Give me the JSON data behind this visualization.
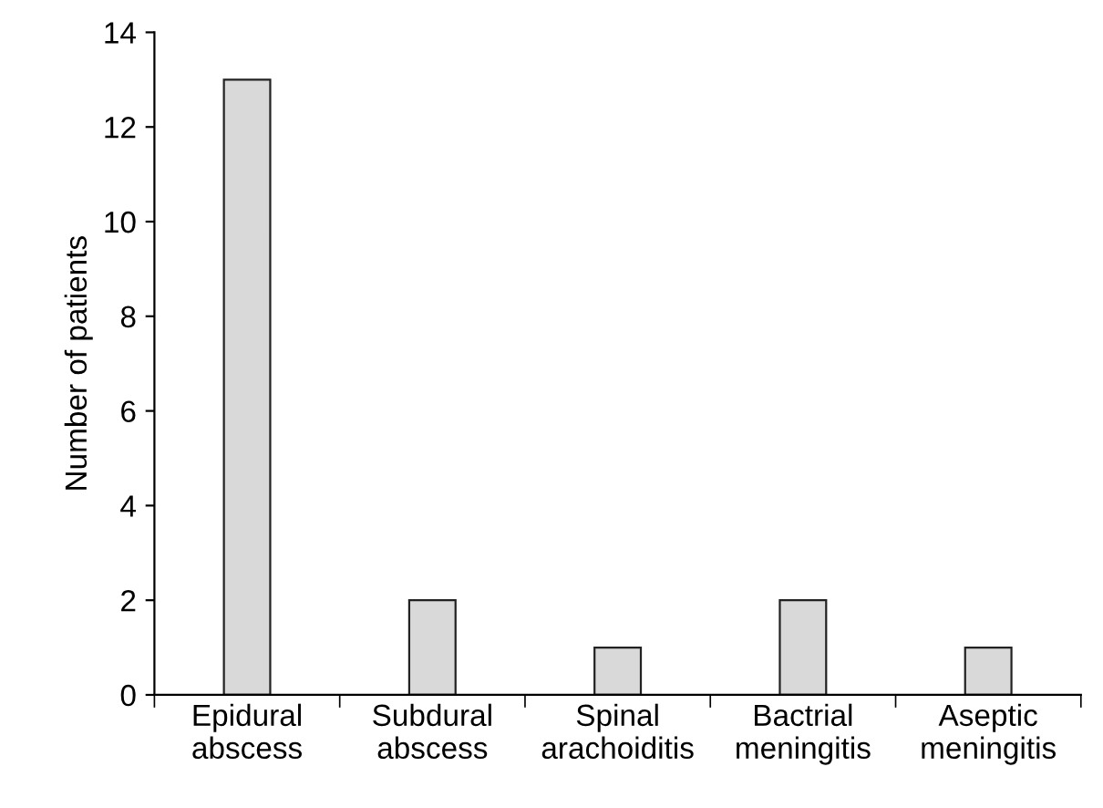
{
  "chart_data": {
    "type": "bar",
    "ylabel": "Number of patients",
    "categories": [
      "Epidural\nabscess",
      "Subdural\nabscess",
      "Spinal\narachoiditis",
      "Bactrial\nmeningitis",
      "Aseptic\nmeningitis"
    ],
    "values": [
      13,
      2,
      1,
      2,
      1
    ],
    "color": "#d9d9d9",
    "ylim": [
      0,
      14
    ],
    "yticks": [
      0,
      2,
      4,
      6,
      8,
      10,
      12,
      14
    ],
    "grid": false,
    "legend": false
  }
}
